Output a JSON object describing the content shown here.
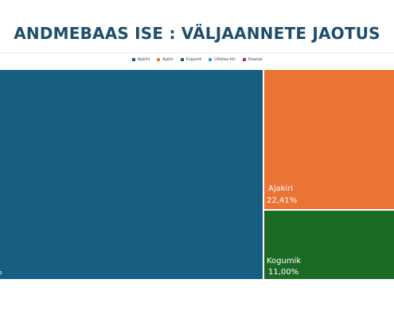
{
  "title": "ANDMEBAAS ISE : VÄLJAANNETE JAOTUS",
  "chart_data": {
    "type": "treemap",
    "title": "ANDMEBAAS ISE : VÄLJAANNETE JAOTUS",
    "legend_position": "top",
    "series": [
      {
        "name": "Ajaloht",
        "color": "#165e82",
        "share": "",
        "value": 66.6
      },
      {
        "name": "Ajakiri",
        "color": "#e97434",
        "share": "22,41%",
        "value": 22.41
      },
      {
        "name": "Kogumik",
        "color": "#1c6b25",
        "share": "11,00%",
        "value": 11.0
      },
      {
        "name": "Ülõpitas-töö",
        "color": "#2fa3c8",
        "share": "",
        "value": 0
      },
      {
        "name": "Raamat",
        "color": "#9b2d8f",
        "share": "",
        "value": 0
      }
    ]
  }
}
